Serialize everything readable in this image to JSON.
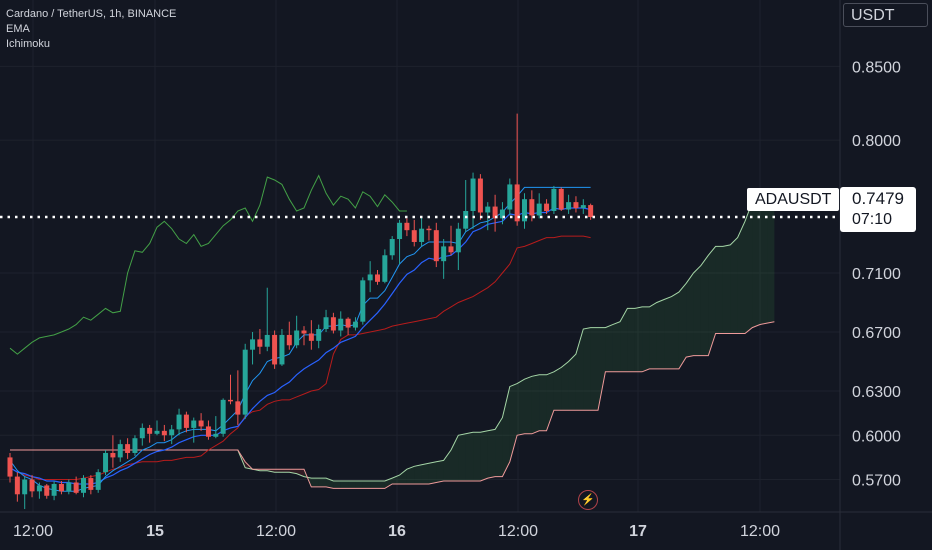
{
  "legend": {
    "title": "Cardano / TetherUS, 1h, BINANCE",
    "indicator_1": "EMA",
    "indicator_2": "Ichimoku"
  },
  "price_scale": {
    "currency_button": "USDT",
    "labels": [
      "0.8500",
      "0.8000",
      "0.7100",
      "0.6700",
      "0.6300",
      "0.6000",
      "0.5700"
    ]
  },
  "time_axis": {
    "labels": [
      "12:00",
      "15",
      "12:00",
      "16",
      "12:00",
      "17",
      "12:00"
    ]
  },
  "last_price": {
    "symbol": "ADAUSDT",
    "price": "0.7479",
    "countdown": "07:10"
  },
  "icons": {
    "flash": "flash-icon"
  },
  "colors": {
    "background": "#131722",
    "up": "#26a69a",
    "down": "#ef5350",
    "ema": "#2962ff",
    "tenkan": "#2196f3",
    "kijun": "#b71c1c",
    "chikou": "#43a047",
    "span_a": "#a5d6a7",
    "span_b": "#ef9a9a"
  },
  "chart_data": {
    "type": "candlestick",
    "symbol": "ADAUSDT",
    "interval": "1h",
    "exchange": "BINANCE",
    "ylim": [
      0.548,
      0.895
    ],
    "y_ticks": [
      0.85,
      0.8,
      0.71,
      0.67,
      0.63,
      0.6,
      0.57
    ],
    "x_ticks": [
      "12:00",
      "15",
      "12:00",
      "16",
      "12:00",
      "17",
      "12:00"
    ],
    "last_price": 0.7479,
    "candles": [
      [
        0.585,
        0.588,
        0.568,
        0.572
      ],
      [
        0.572,
        0.575,
        0.555,
        0.56
      ],
      [
        0.56,
        0.572,
        0.55,
        0.57
      ],
      [
        0.57,
        0.573,
        0.558,
        0.562
      ],
      [
        0.562,
        0.568,
        0.557,
        0.566
      ],
      [
        0.566,
        0.567,
        0.557,
        0.559
      ],
      [
        0.559,
        0.569,
        0.556,
        0.567
      ],
      [
        0.567,
        0.569,
        0.56,
        0.562
      ],
      [
        0.562,
        0.57,
        0.56,
        0.568
      ],
      [
        0.568,
        0.572,
        0.56,
        0.561
      ],
      [
        0.561,
        0.573,
        0.558,
        0.571
      ],
      [
        0.571,
        0.573,
        0.56,
        0.563
      ],
      [
        0.563,
        0.577,
        0.561,
        0.575
      ],
      [
        0.575,
        0.59,
        0.573,
        0.588
      ],
      [
        0.588,
        0.6,
        0.578,
        0.585
      ],
      [
        0.585,
        0.597,
        0.582,
        0.594
      ],
      [
        0.594,
        0.598,
        0.584,
        0.588
      ],
      [
        0.588,
        0.6,
        0.586,
        0.598
      ],
      [
        0.598,
        0.608,
        0.593,
        0.605
      ],
      [
        0.605,
        0.607,
        0.595,
        0.601
      ],
      [
        0.601,
        0.61,
        0.6,
        0.603
      ],
      [
        0.603,
        0.607,
        0.596,
        0.6
      ],
      [
        0.6,
        0.607,
        0.594,
        0.604
      ],
      [
        0.604,
        0.618,
        0.6,
        0.614
      ],
      [
        0.614,
        0.616,
        0.602,
        0.605
      ],
      [
        0.605,
        0.612,
        0.595,
        0.61
      ],
      [
        0.61,
        0.615,
        0.603,
        0.606
      ],
      [
        0.606,
        0.61,
        0.597,
        0.599
      ],
      [
        0.599,
        0.613,
        0.598,
        0.601
      ],
      [
        0.601,
        0.625,
        0.599,
        0.624
      ],
      [
        0.624,
        0.641,
        0.621,
        0.623
      ],
      [
        0.623,
        0.644,
        0.607,
        0.614
      ],
      [
        0.614,
        0.662,
        0.611,
        0.658
      ],
      [
        0.658,
        0.67,
        0.648,
        0.665
      ],
      [
        0.665,
        0.672,
        0.655,
        0.66
      ],
      [
        0.66,
        0.7,
        0.657,
        0.668
      ],
      [
        0.668,
        0.671,
        0.645,
        0.648
      ],
      [
        0.648,
        0.672,
        0.647,
        0.668
      ],
      [
        0.668,
        0.677,
        0.658,
        0.661
      ],
      [
        0.661,
        0.681,
        0.659,
        0.671
      ],
      [
        0.671,
        0.674,
        0.661,
        0.669
      ],
      [
        0.669,
        0.678,
        0.658,
        0.664
      ],
      [
        0.664,
        0.675,
        0.659,
        0.672
      ],
      [
        0.672,
        0.685,
        0.67,
        0.68
      ],
      [
        0.68,
        0.683,
        0.669,
        0.671
      ],
      [
        0.671,
        0.684,
        0.667,
        0.679
      ],
      [
        0.679,
        0.68,
        0.668,
        0.673
      ],
      [
        0.673,
        0.68,
        0.671,
        0.677
      ],
      [
        0.677,
        0.707,
        0.675,
        0.705
      ],
      [
        0.705,
        0.718,
        0.697,
        0.709
      ],
      [
        0.709,
        0.712,
        0.702,
        0.704
      ],
      [
        0.704,
        0.726,
        0.703,
        0.722
      ],
      [
        0.722,
        0.735,
        0.719,
        0.733
      ],
      [
        0.733,
        0.746,
        0.716,
        0.744
      ],
      [
        0.744,
        0.747,
        0.735,
        0.739
      ],
      [
        0.739,
        0.746,
        0.728,
        0.731
      ],
      [
        0.731,
        0.748,
        0.728,
        0.74
      ],
      [
        0.74,
        0.742,
        0.732,
        0.739
      ],
      [
        0.739,
        0.744,
        0.714,
        0.718
      ],
      [
        0.718,
        0.733,
        0.706,
        0.728
      ],
      [
        0.728,
        0.742,
        0.722,
        0.724
      ],
      [
        0.724,
        0.744,
        0.712,
        0.74
      ],
      [
        0.74,
        0.773,
        0.738,
        0.752
      ],
      [
        0.752,
        0.778,
        0.74,
        0.774
      ],
      [
        0.774,
        0.777,
        0.746,
        0.751
      ],
      [
        0.751,
        0.758,
        0.739,
        0.755
      ],
      [
        0.755,
        0.763,
        0.738,
        0.747
      ],
      [
        0.747,
        0.758,
        0.743,
        0.753
      ],
      [
        0.753,
        0.774,
        0.749,
        0.77
      ],
      [
        0.77,
        0.818,
        0.742,
        0.745
      ],
      [
        0.745,
        0.764,
        0.74,
        0.76
      ],
      [
        0.76,
        0.766,
        0.745,
        0.749
      ],
      [
        0.749,
        0.764,
        0.747,
        0.757
      ],
      [
        0.757,
        0.76,
        0.75,
        0.752
      ],
      [
        0.752,
        0.769,
        0.75,
        0.767
      ],
      [
        0.767,
        0.768,
        0.752,
        0.753
      ],
      [
        0.753,
        0.763,
        0.75,
        0.758
      ],
      [
        0.758,
        0.762,
        0.751,
        0.754
      ],
      [
        0.754,
        0.76,
        0.75,
        0.756
      ],
      [
        0.756,
        0.757,
        0.746,
        0.7479
      ]
    ],
    "ema": [
      0.578,
      0.575,
      0.574,
      0.572,
      0.571,
      0.569,
      0.569,
      0.568,
      0.568,
      0.567,
      0.567,
      0.567,
      0.568,
      0.571,
      0.573,
      0.576,
      0.578,
      0.581,
      0.584,
      0.587,
      0.589,
      0.59,
      0.592,
      0.595,
      0.597,
      0.599,
      0.6,
      0.6,
      0.6,
      0.603,
      0.605,
      0.606,
      0.612,
      0.618,
      0.623,
      0.627,
      0.629,
      0.633,
      0.636,
      0.641,
      0.645,
      0.648,
      0.651,
      0.656,
      0.659,
      0.663,
      0.665,
      0.667,
      0.673,
      0.678,
      0.683,
      0.689,
      0.696,
      0.703,
      0.709,
      0.712,
      0.717,
      0.72,
      0.719,
      0.721,
      0.722,
      0.726,
      0.731,
      0.738,
      0.74,
      0.743,
      0.744,
      0.745,
      0.75,
      0.749,
      0.751,
      0.75,
      0.751,
      0.751,
      0.754,
      0.753,
      0.754,
      0.754,
      0.754,
      0.753
    ],
    "tenkan": [
      0.583,
      0.576,
      0.572,
      0.57,
      0.566,
      0.564,
      0.563,
      0.562,
      0.562,
      0.562,
      0.564,
      0.565,
      0.566,
      0.572,
      0.576,
      0.579,
      0.582,
      0.585,
      0.59,
      0.592,
      0.595,
      0.595,
      0.597,
      0.601,
      0.603,
      0.604,
      0.604,
      0.604,
      0.603,
      0.607,
      0.612,
      0.617,
      0.628,
      0.637,
      0.642,
      0.65,
      0.652,
      0.653,
      0.655,
      0.663,
      0.668,
      0.668,
      0.668,
      0.674,
      0.674,
      0.675,
      0.674,
      0.675,
      0.688,
      0.693,
      0.693,
      0.698,
      0.707,
      0.716,
      0.721,
      0.723,
      0.728,
      0.731,
      0.731,
      0.731,
      0.731,
      0.73,
      0.738,
      0.741,
      0.744,
      0.745,
      0.748,
      0.751,
      0.757,
      0.762,
      0.768,
      0.768,
      0.768,
      0.768,
      0.768,
      0.768,
      0.768,
      0.768,
      0.768,
      0.768
    ],
    "kijun": [
      0.578,
      0.575,
      0.573,
      0.572,
      0.57,
      0.57,
      0.57,
      0.57,
      0.57,
      0.57,
      0.571,
      0.572,
      0.573,
      0.575,
      0.577,
      0.578,
      0.58,
      0.581,
      0.582,
      0.582,
      0.582,
      0.583,
      0.583,
      0.584,
      0.585,
      0.585,
      0.586,
      0.59,
      0.593,
      0.596,
      0.601,
      0.605,
      0.613,
      0.616,
      0.617,
      0.621,
      0.623,
      0.624,
      0.624,
      0.626,
      0.628,
      0.63,
      0.631,
      0.635,
      0.655,
      0.665,
      0.668,
      0.668,
      0.669,
      0.67,
      0.671,
      0.672,
      0.674,
      0.675,
      0.676,
      0.677,
      0.678,
      0.679,
      0.68,
      0.684,
      0.687,
      0.69,
      0.692,
      0.694,
      0.697,
      0.7,
      0.704,
      0.71,
      0.716,
      0.727,
      0.728,
      0.73,
      0.732,
      0.734,
      0.734,
      0.735,
      0.735,
      0.735,
      0.735,
      0.734
    ],
    "chikou": [
      0.659,
      0.655,
      0.659,
      0.663,
      0.666,
      0.667,
      0.668,
      0.67,
      0.672,
      0.675,
      0.68,
      0.678,
      0.682,
      0.686,
      0.683,
      0.684,
      0.71,
      0.725,
      0.724,
      0.73,
      0.741,
      0.745,
      0.74,
      0.733,
      0.73,
      0.736,
      0.728,
      0.73,
      0.736,
      0.742,
      0.746,
      0.752,
      0.754,
      0.745,
      0.756,
      0.775,
      0.773,
      0.77,
      0.76,
      0.752,
      0.754,
      0.766,
      0.776,
      0.764,
      0.756,
      0.762,
      0.76,
      0.754,
      0.765,
      0.762,
      0.755,
      0.763,
      0.758,
      0.752,
      0.752
    ],
    "cloud_span_a": [
      0.59,
      0.59,
      0.59,
      0.59,
      0.59,
      0.59,
      0.59,
      0.59,
      0.59,
      0.59,
      0.59,
      0.59,
      0.59,
      0.59,
      0.59,
      0.59,
      0.59,
      0.59,
      0.59,
      0.59,
      0.59,
      0.59,
      0.59,
      0.59,
      0.59,
      0.59,
      0.59,
      0.59,
      0.59,
      0.59,
      0.59,
      0.59,
      0.578,
      0.577,
      0.576,
      0.576,
      0.575,
      0.575,
      0.575,
      0.574,
      0.572,
      0.571,
      0.571,
      0.571,
      0.569,
      0.569,
      0.569,
      0.569,
      0.569,
      0.569,
      0.569,
      0.569,
      0.571,
      0.573,
      0.577,
      0.579,
      0.58,
      0.581,
      0.582,
      0.583,
      0.59,
      0.6,
      0.601,
      0.602,
      0.602,
      0.603,
      0.604,
      0.612,
      0.633,
      0.635,
      0.638,
      0.64,
      0.641,
      0.641,
      0.643,
      0.646,
      0.65,
      0.655,
      0.672,
      0.673,
      0.673,
      0.673,
      0.675,
      0.677,
      0.686,
      0.686,
      0.687,
      0.687,
      0.69,
      0.692,
      0.694,
      0.697,
      0.703,
      0.71,
      0.715,
      0.722,
      0.728,
      0.728,
      0.729,
      0.734,
      0.745,
      0.758,
      0.759,
      0.76,
      0.761
    ],
    "cloud_span_b": [
      0.59,
      0.59,
      0.59,
      0.59,
      0.59,
      0.59,
      0.59,
      0.59,
      0.59,
      0.59,
      0.59,
      0.59,
      0.59,
      0.59,
      0.59,
      0.59,
      0.59,
      0.59,
      0.59,
      0.59,
      0.59,
      0.59,
      0.59,
      0.59,
      0.59,
      0.59,
      0.59,
      0.59,
      0.59,
      0.59,
      0.59,
      0.59,
      0.582,
      0.577,
      0.577,
      0.577,
      0.577,
      0.577,
      0.577,
      0.577,
      0.577,
      0.565,
      0.565,
      0.565,
      0.564,
      0.564,
      0.564,
      0.564,
      0.564,
      0.564,
      0.564,
      0.564,
      0.567,
      0.567,
      0.567,
      0.567,
      0.567,
      0.567,
      0.568,
      0.569,
      0.569,
      0.569,
      0.569,
      0.569,
      0.569,
      0.571,
      0.572,
      0.572,
      0.582,
      0.6,
      0.601,
      0.601,
      0.603,
      0.603,
      0.617,
      0.617,
      0.617,
      0.617,
      0.617,
      0.617,
      0.617,
      0.643,
      0.643,
      0.643,
      0.643,
      0.643,
      0.643,
      0.645,
      0.645,
      0.645,
      0.645,
      0.645,
      0.653,
      0.654,
      0.654,
      0.654,
      0.669,
      0.669,
      0.669,
      0.669,
      0.669,
      0.673,
      0.675,
      0.676,
      0.677
    ]
  }
}
